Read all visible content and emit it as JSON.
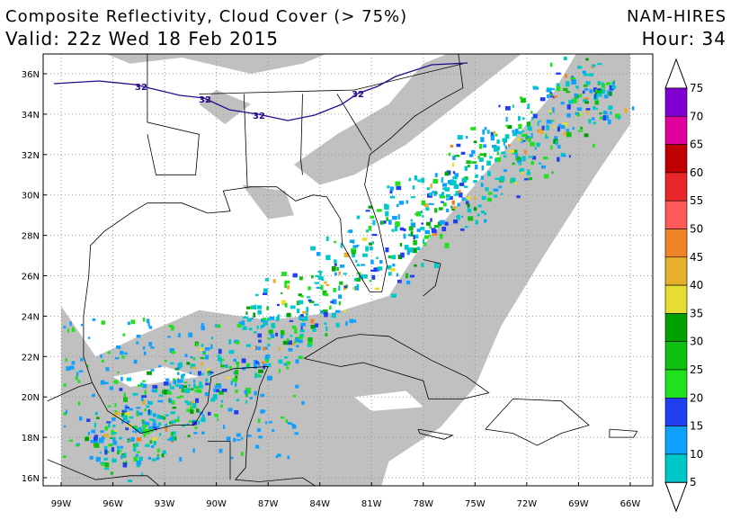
{
  "header": {
    "title": "Composite Reflectivity, Cloud Cover (> 75%)",
    "valid": "Valid: 22z Wed 18 Feb 2015",
    "model": "NAM-HIRES",
    "hour": "Hour: 34"
  },
  "map": {
    "lat_labels": [
      "36N",
      "34N",
      "32N",
      "30N",
      "28N",
      "26N",
      "24N",
      "22N",
      "20N",
      "18N",
      "16N"
    ],
    "lon_labels": [
      "99W",
      "96W",
      "93W",
      "90W",
      "87W",
      "84W",
      "81W",
      "78W",
      "75W",
      "72W",
      "69W",
      "66W"
    ],
    "contour_labels": [
      "32",
      "32",
      "32",
      "32"
    ]
  },
  "colorbar": {
    "labels": [
      "75",
      "70",
      "65",
      "60",
      "55",
      "50",
      "45",
      "40",
      "35",
      "30",
      "25",
      "20",
      "15",
      "10",
      "5"
    ],
    "colors": [
      "#7d00d0",
      "#e0009b",
      "#c00000",
      "#e82828",
      "#ff5a5a",
      "#f08228",
      "#e6af2d",
      "#e6dc32",
      "#00a000",
      "#10c010",
      "#20e020",
      "#2040f0",
      "#10a0ff",
      "#00c8c8"
    ]
  }
}
